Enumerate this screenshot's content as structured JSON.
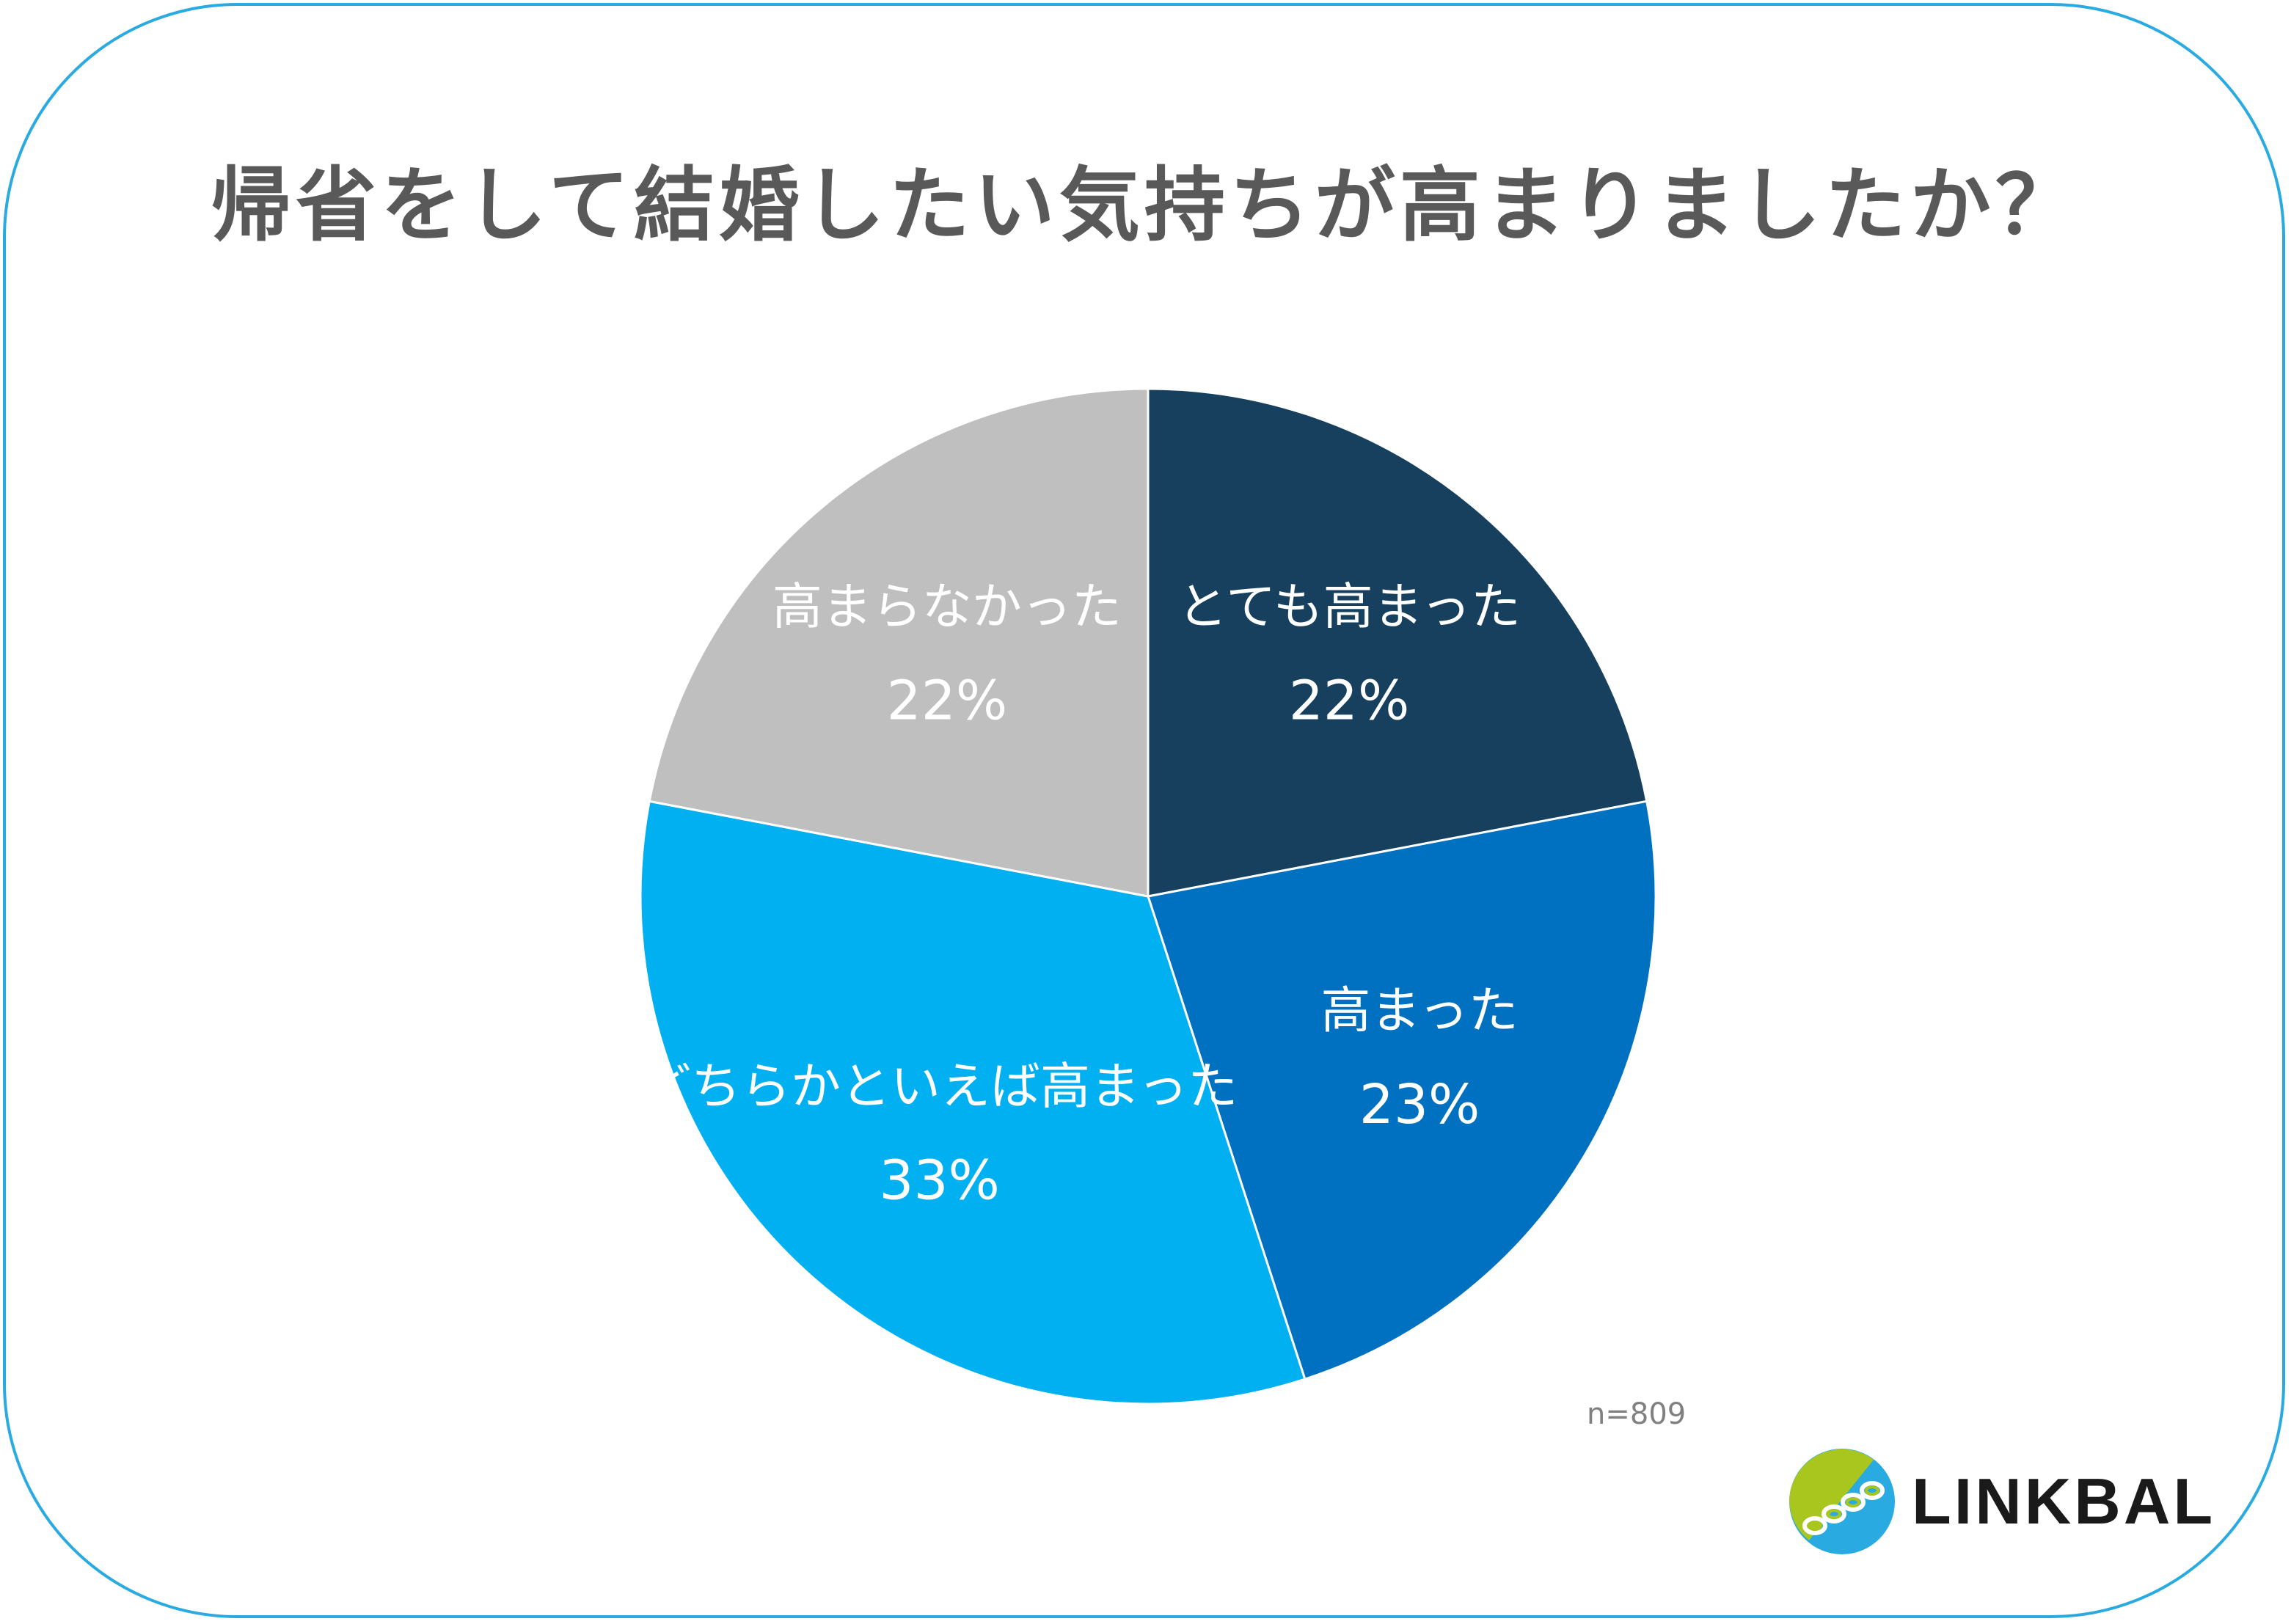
{
  "chart_data": {
    "type": "pie",
    "title": "帰省をして結婚したい気持ちが高まりましたか？",
    "start": "12 o'clock, clockwise",
    "slices": [
      {
        "label": "とても高まった",
        "value": 22,
        "value_label": "22%",
        "color": "#17405F"
      },
      {
        "label": "高まった",
        "value": 23,
        "value_label": "23%",
        "color": "#0070C0"
      },
      {
        "label": "どちらかといえば高まった",
        "value": 33,
        "value_label": "33%",
        "color": "#00B0F0"
      },
      {
        "label": "高まらなかった",
        "value": 22,
        "value_label": "22%",
        "color": "#BFBFBF"
      }
    ],
    "sample_note": "n=809"
  },
  "brand": {
    "name": "LINKBAL",
    "colors": {
      "border": "#29ABE2",
      "logo_green": "#A8C61E",
      "logo_blue": "#29ABE2"
    }
  }
}
